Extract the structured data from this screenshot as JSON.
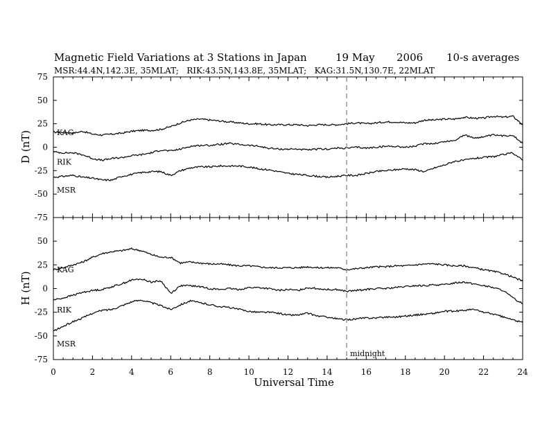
{
  "header": {
    "title": "Magnetic Field Variations at 3 Stations in Japan",
    "date": "19 May",
    "year": "2006",
    "averaging": "10-s averages",
    "stations": "MSR:44.4N,142.3E, 35MLAT;   RIK:43.5N,143.8E, 35MLAT;   KAG:31.5N,130.7E, 22MLAT"
  },
  "chart_data": [
    {
      "type": "line",
      "panel": "D",
      "ylabel": "D (nT)",
      "xlim": [
        0,
        24
      ],
      "ylim": [
        -75,
        75
      ],
      "yticks": [
        75,
        50,
        25,
        0,
        -25,
        -50,
        -75
      ],
      "series": [
        {
          "name": "KAG",
          "x": [
            0,
            0.5,
            1,
            1.5,
            2,
            2.5,
            3,
            3.5,
            4,
            4.5,
            5,
            5.5,
            6,
            6.5,
            7,
            7.5,
            8,
            8.5,
            9,
            9.5,
            10,
            10.5,
            11,
            11.5,
            12,
            12.5,
            13,
            13.5,
            14,
            14.5,
            15,
            15.5,
            16,
            16.5,
            17,
            17.5,
            18,
            18.5,
            19,
            19.5,
            20,
            20.5,
            21,
            21.5,
            22,
            22.5,
            23,
            23.5,
            24
          ],
          "y": [
            16,
            16,
            15,
            17,
            14,
            13,
            14,
            15,
            17,
            18,
            18,
            19,
            22,
            26,
            29,
            30,
            29,
            28,
            27,
            26,
            25,
            25,
            24,
            24,
            24,
            24,
            23,
            24,
            24,
            24,
            25,
            26,
            25,
            26,
            27,
            27,
            26,
            26,
            29,
            29,
            30,
            30,
            32,
            31,
            31,
            33,
            32,
            33,
            24
          ]
        },
        {
          "name": "RIK",
          "x": [
            0,
            0.5,
            1,
            1.5,
            2,
            2.5,
            3,
            3.5,
            4,
            4.5,
            5,
            5.5,
            6,
            6.5,
            7,
            7.5,
            8,
            8.5,
            9,
            9.5,
            10,
            10.5,
            11,
            11.5,
            12,
            12.5,
            13,
            13.5,
            14,
            14.5,
            15,
            15.5,
            16,
            16.5,
            17,
            17.5,
            18,
            18.5,
            19,
            19.5,
            20,
            20.5,
            21,
            21.5,
            22,
            22.5,
            23,
            23.5,
            24
          ],
          "y": [
            -5,
            -6,
            -6,
            -8,
            -12,
            -14,
            -12,
            -11,
            -9,
            -8,
            -6,
            -3,
            -4,
            -2,
            1,
            2,
            2,
            3,
            4,
            3,
            2,
            1,
            -1,
            -2,
            -2,
            -2,
            -3,
            -2,
            -2,
            -1,
            -1,
            0,
            -1,
            0,
            1,
            1,
            0,
            1,
            4,
            4,
            6,
            7,
            13,
            10,
            11,
            13,
            12,
            13,
            4
          ]
        },
        {
          "name": "MSR",
          "x": [
            0,
            0.5,
            1,
            1.5,
            2,
            2.5,
            3,
            3.5,
            4,
            4.5,
            5,
            5.5,
            6,
            6.5,
            7,
            7.5,
            8,
            8.5,
            9,
            9.5,
            10,
            10.5,
            11,
            11.5,
            12,
            12.5,
            13,
            13.5,
            14,
            14.5,
            15,
            15.5,
            16,
            16.5,
            17,
            17.5,
            18,
            18.5,
            19,
            19.5,
            20,
            20.5,
            21,
            21.5,
            22,
            22.5,
            23,
            23.5,
            24
          ],
          "y": [
            -32,
            -31,
            -30,
            -32,
            -33,
            -35,
            -35,
            -31,
            -29,
            -27,
            -26,
            -26,
            -30,
            -25,
            -22,
            -21,
            -21,
            -20,
            -20,
            -20,
            -21,
            -23,
            -24,
            -26,
            -28,
            -29,
            -30,
            -31,
            -32,
            -31,
            -30,
            -30,
            -28,
            -26,
            -25,
            -24,
            -23,
            -24,
            -26,
            -22,
            -19,
            -15,
            -14,
            -12,
            -11,
            -10,
            -8,
            -6,
            -14
          ]
        }
      ],
      "grid": false
    },
    {
      "type": "line",
      "panel": "H",
      "ylabel": "H (nT)",
      "xlabel": "Universal Time",
      "xlim": [
        0,
        24
      ],
      "ylim": [
        -75,
        75
      ],
      "xticks": [
        0,
        2,
        4,
        6,
        8,
        10,
        12,
        14,
        16,
        18,
        20,
        22,
        24
      ],
      "yticks": [
        75,
        50,
        25,
        0,
        -25,
        -50,
        -75
      ],
      "annotation": {
        "x": 15,
        "label": "midnight"
      },
      "series": [
        {
          "name": "KAG",
          "x": [
            0,
            0.5,
            1,
            1.5,
            2,
            2.5,
            3,
            3.5,
            4,
            4.5,
            5,
            5.5,
            6,
            6.5,
            7,
            7.5,
            8,
            8.5,
            9,
            9.5,
            10,
            10.5,
            11,
            11.5,
            12,
            12.5,
            13,
            13.5,
            14,
            14.5,
            15,
            15.5,
            16,
            16.5,
            17,
            17.5,
            18,
            18.5,
            19,
            19.5,
            20,
            20.5,
            21,
            21.5,
            22,
            22.5,
            23,
            23.5,
            24
          ],
          "y": [
            20,
            22,
            25,
            28,
            33,
            37,
            39,
            40,
            42,
            40,
            36,
            33,
            33,
            27,
            28,
            27,
            26,
            26,
            25,
            24,
            24,
            23,
            22,
            22,
            22,
            22,
            23,
            22,
            22,
            22,
            20,
            21,
            22,
            23,
            23,
            24,
            24,
            25,
            26,
            26,
            25,
            24,
            24,
            22,
            20,
            18,
            16,
            12,
            8
          ]
        },
        {
          "name": "RIK",
          "x": [
            0,
            0.5,
            1,
            1.5,
            2,
            2.5,
            3,
            3.5,
            4,
            4.5,
            5,
            5.5,
            6,
            6.5,
            7,
            7.5,
            8,
            8.5,
            9,
            9.5,
            10,
            10.5,
            11,
            11.5,
            12,
            12.5,
            13,
            13.5,
            14,
            14.5,
            15,
            15.5,
            16,
            16.5,
            17,
            17.5,
            18,
            18.5,
            19,
            19.5,
            20,
            20.5,
            21,
            21.5,
            22,
            22.5,
            23,
            23.5,
            24
          ],
          "y": [
            -12,
            -10,
            -7,
            -4,
            -2,
            -1,
            2,
            5,
            9,
            10,
            7,
            8,
            -5,
            3,
            3,
            2,
            0,
            -1,
            0,
            -1,
            1,
            1,
            0,
            -2,
            -1,
            -2,
            1,
            0,
            -1,
            -1,
            -3,
            -2,
            -1,
            0,
            0,
            1,
            2,
            3,
            3,
            4,
            4,
            6,
            7,
            5,
            3,
            1,
            -2,
            -10,
            -16
          ]
        },
        {
          "name": "MSR",
          "x": [
            0,
            0.5,
            1,
            1.5,
            2,
            2.5,
            3,
            3.5,
            4,
            4.5,
            5,
            5.5,
            6,
            6.5,
            7,
            7.5,
            8,
            8.5,
            9,
            9.5,
            10,
            10.5,
            11,
            11.5,
            12,
            12.5,
            13,
            13.5,
            14,
            14.5,
            15,
            15.5,
            16,
            16.5,
            17,
            17.5,
            18,
            18.5,
            19,
            19.5,
            20,
            20.5,
            21,
            21.5,
            22,
            22.5,
            23,
            23.5,
            24
          ],
          "y": [
            -45,
            -40,
            -35,
            -31,
            -26,
            -23,
            -22,
            -18,
            -14,
            -12,
            -15,
            -18,
            -22,
            -17,
            -13,
            -15,
            -17,
            -19,
            -20,
            -22,
            -24,
            -25,
            -25,
            -26,
            -28,
            -28,
            -26,
            -29,
            -30,
            -32,
            -33,
            -32,
            -31,
            -31,
            -30,
            -30,
            -29,
            -28,
            -27,
            -26,
            -24,
            -24,
            -23,
            -22,
            -25,
            -27,
            -30,
            -33,
            -36
          ]
        }
      ],
      "grid": false
    }
  ]
}
